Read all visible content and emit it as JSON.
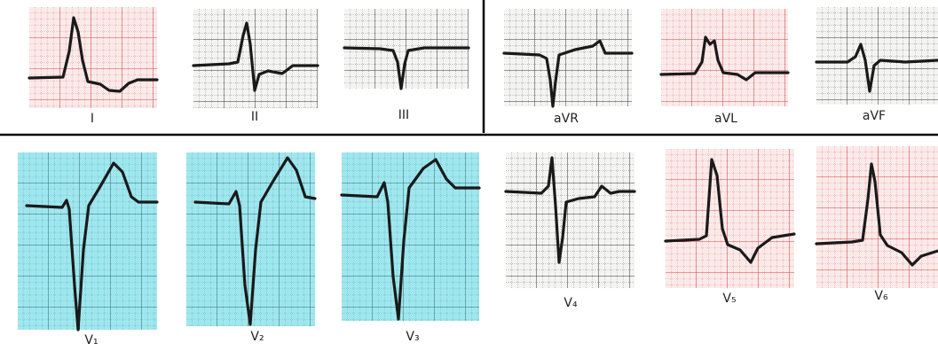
{
  "leads": [
    "I",
    "II",
    "III",
    "aVR",
    "aVL",
    "aVF",
    "V₁",
    "V₂",
    "V₃",
    "V₄",
    "V₅",
    "V₆"
  ]
}
